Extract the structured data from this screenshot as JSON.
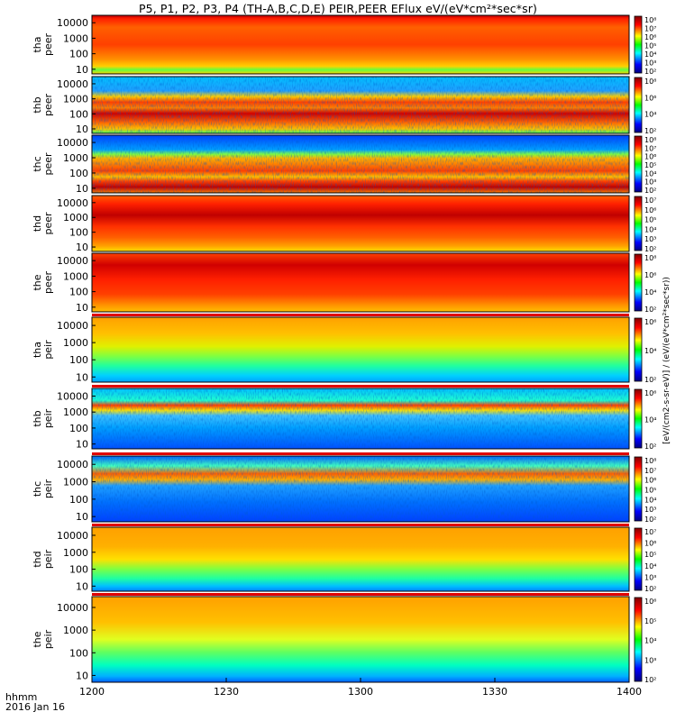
{
  "title_text": "P5, P1, P2, P3, P4 (TH-A,B,C,D,E) PEIR,PEER EFlux eV/(eV*cm²*sec*sr)",
  "time_axis": {
    "ticks": [
      "1200",
      "1230",
      "1300",
      "1330",
      "1400"
    ],
    "unit_label": "hhmm",
    "date_label": "2016 Jan 16"
  },
  "colorbar_unit_label": "[eV/(cm2-s-sr-eV)] / (eV/(eV*cm²*sec*sr))",
  "chart_data": {
    "type": "heatmap",
    "title": "P5, P1, P2, P3, P4 (TH-A,B,C,D,E) PEIR,PEER EFlux eV/(eV*cm²*sec*sr)",
    "x": {
      "type": "time",
      "range": [
        "12:00",
        "14:00"
      ],
      "tick_labels": [
        "1200",
        "1230",
        "1300",
        "1330",
        "1400"
      ],
      "label": "hhmm",
      "date": "2016 Jan 16"
    },
    "y": {
      "scale": "log",
      "range": [
        5,
        30000
      ],
      "tick_labels": [
        "10",
        "100",
        "1000",
        "10000"
      ]
    },
    "colorscale": "rainbow (blue-cyan-green-yellow-red-dark red)",
    "panels": [
      {
        "probe": "tha",
        "species": "peer",
        "ylabel": [
          "tha",
          "peer"
        ],
        "colorbar_ticks": [
          "10²",
          "10³",
          "10⁴",
          "10⁵",
          "10⁶",
          "10⁷",
          "10⁸"
        ],
        "colorbar_range": [
          100.0,
          100000000.0
        ],
        "dominant_band": "1e6-1e7 above 30 eV, weak at 10 eV early"
      },
      {
        "probe": "thb",
        "species": "peer",
        "ylabel": [
          "thb",
          "peer"
        ],
        "colorbar_ticks": [
          "10²",
          "10⁴",
          "10⁶",
          "10⁸"
        ],
        "colorbar_range": [
          100.0,
          100000000.0
        ],
        "dominant_band": "red 50-600 eV, noisy above 2000 eV"
      },
      {
        "probe": "thc",
        "species": "peer",
        "ylabel": [
          "thc",
          "peer"
        ],
        "colorbar_ticks": [
          "10²",
          "10³",
          "10⁴",
          "10⁵",
          "10⁶",
          "10⁷",
          "10⁸"
        ],
        "colorbar_range": [
          100.0,
          100000000.0
        ],
        "dominant_band": "red 10-600 eV, noisy above 2000 eV"
      },
      {
        "probe": "thd",
        "species": "peer",
        "ylabel": [
          "thd",
          "peer"
        ],
        "colorbar_ticks": [
          "10²",
          "10³",
          "10⁴",
          "10⁵",
          "10⁶",
          "10⁷"
        ],
        "colorbar_range": [
          100.0,
          10000000.0
        ],
        "dominant_band": "red across 10-20000 eV"
      },
      {
        "probe": "the",
        "species": "peer",
        "ylabel": [
          "the",
          "peer"
        ],
        "colorbar_ticks": [
          "10²",
          "10⁴",
          "10⁶",
          "10⁸"
        ],
        "colorbar_range": [
          100.0,
          100000000.0
        ],
        "dominant_band": "red across 20-20000 eV"
      },
      {
        "probe": "tha",
        "species": "peir",
        "ylabel": [
          "tha",
          "peir"
        ],
        "colorbar_ticks": [
          "10²",
          "10⁴",
          "10⁶"
        ],
        "colorbar_range": [
          100.0,
          10000000.0
        ],
        "dominant_band": "orange above 2000 eV, green 10-100 eV"
      },
      {
        "probe": "thb",
        "species": "peir",
        "ylabel": [
          "thb",
          "peir"
        ],
        "colorbar_ticks": [
          "10²",
          "10⁴",
          "10⁶"
        ],
        "colorbar_range": [
          100.0,
          10000000.0
        ],
        "dominant_band": "red 500-1000 eV, blue below 100 eV"
      },
      {
        "probe": "thc",
        "species": "peir",
        "ylabel": [
          "thc",
          "peir"
        ],
        "colorbar_ticks": [
          "10²",
          "10³",
          "10⁴",
          "10⁵",
          "10⁶",
          "10⁷",
          "10⁸"
        ],
        "colorbar_range": [
          100.0,
          100000000.0
        ],
        "dominant_band": "red 400-1000 eV, blue below 100 eV"
      },
      {
        "probe": "thd",
        "species": "peir",
        "ylabel": [
          "thd",
          "peir"
        ],
        "colorbar_ticks": [
          "10²",
          "10³",
          "10⁴",
          "10⁵",
          "10⁶",
          "10⁷"
        ],
        "colorbar_range": [
          100.0,
          10000000.0
        ],
        "dominant_band": "orange above 1000 eV, green-cyan below 100 eV"
      },
      {
        "probe": "the",
        "species": "peir",
        "ylabel": [
          "the",
          "peir"
        ],
        "colorbar_ticks": [
          "10²",
          "10³",
          "10⁴",
          "10⁵",
          "10⁶"
        ],
        "colorbar_range": [
          100.0,
          1000000.0
        ],
        "dominant_band": "orange above 1000 eV, green-cyan below 100 eV"
      }
    ]
  }
}
